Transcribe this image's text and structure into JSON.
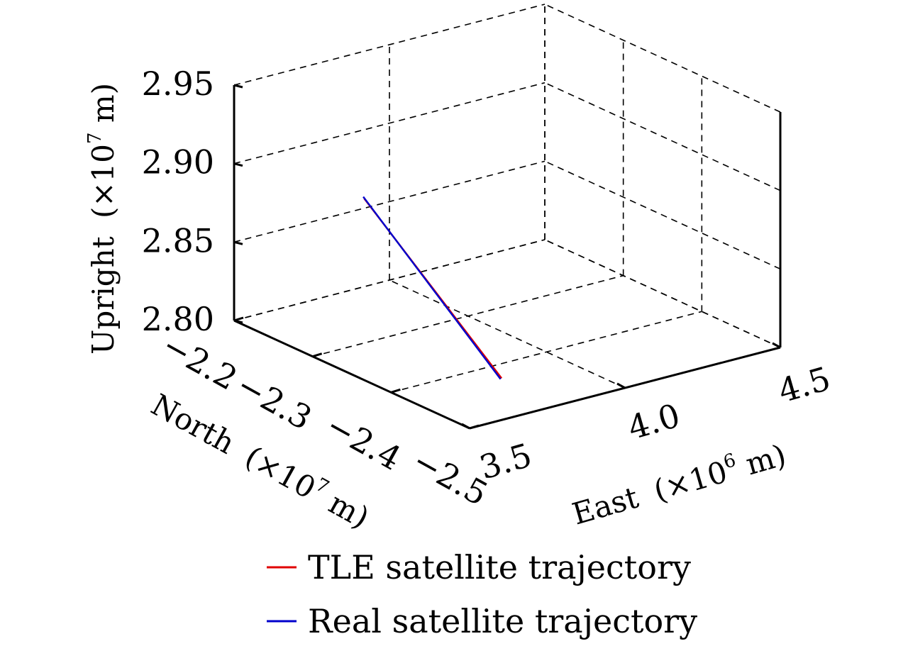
{
  "chart_data": {
    "type": "line",
    "projection": "3d",
    "axes": {
      "x": {
        "label": "East",
        "unit_prefix": "(×10",
        "unit_exp": "6",
        "unit_suffix": " m)",
        "range": [
          3.5,
          4.5
        ],
        "ticks": [
          "3.5",
          "4.0",
          "4.5"
        ]
      },
      "y": {
        "label": "North",
        "unit_prefix": "(×10",
        "unit_exp": "7",
        "unit_suffix": " m)",
        "range": [
          -2.5,
          -2.2
        ],
        "ticks": [
          "−2.2",
          "−2.3",
          "−2.4",
          "−2.5"
        ]
      },
      "z": {
        "label": "Upright",
        "unit_prefix": "(×10",
        "unit_exp": "7",
        "unit_suffix": " m)",
        "range": [
          2.8,
          2.95
        ],
        "ticks": [
          "2.80",
          "2.85",
          "2.90",
          "2.95"
        ]
      }
    },
    "grid": true,
    "legend_position": "bottom",
    "series": [
      {
        "name": "TLE satellite trajectory",
        "color": "#e00000",
        "east": [
          3.79,
          3.8
        ],
        "north": [
          -2.426,
          -2.247
        ],
        "upright": [
          2.8,
          2.873
        ]
      },
      {
        "name": "Real satellite trajectory",
        "color": "#0000cc",
        "east": [
          3.784,
          3.792
        ],
        "north": [
          -2.427,
          -2.249
        ],
        "upright": [
          2.8,
          2.875
        ]
      }
    ]
  }
}
